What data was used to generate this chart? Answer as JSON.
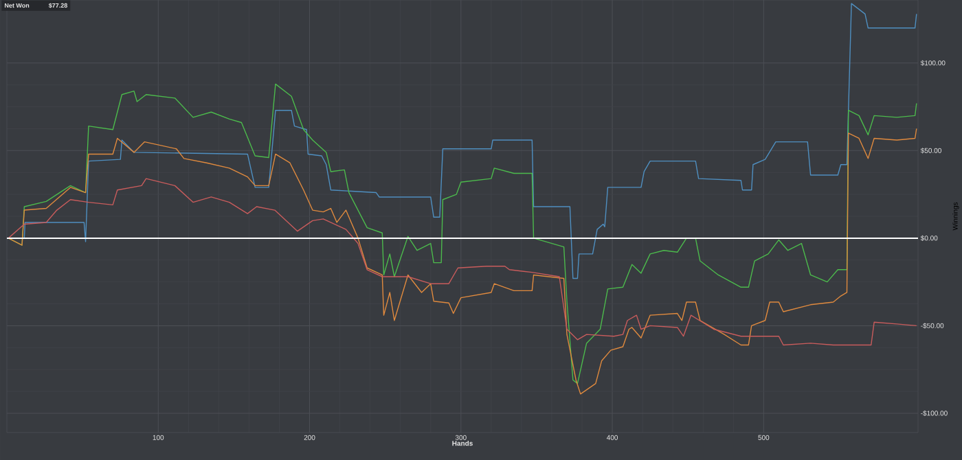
{
  "chart_data": {
    "type": "line",
    "xlabel": "Hands",
    "ylabel": "Winnings",
    "annotations": [
      "Net Won",
      "$77.28"
    ],
    "xlim": [
      0,
      602
    ],
    "ylim": [
      -111,
      136
    ],
    "xticks": [
      100,
      200,
      300,
      400,
      500
    ],
    "yticks": [
      {
        "value": -100,
        "label": "-$100.00"
      },
      {
        "value": -50,
        "label": "-$50.00"
      },
      {
        "value": 0,
        "label": "$0.00"
      },
      {
        "value": 50,
        "label": "$50.00"
      },
      {
        "value": 100,
        "label": "$100.00"
      }
    ],
    "grid": true,
    "ref_lines": [
      {
        "axis": "y",
        "value": 0,
        "color": "#ffffff"
      }
    ],
    "series": [
      {
        "color": "#4f8fc0",
        "x": [
          1,
          11.5,
          12,
          51,
          52,
          54,
          75,
          76,
          84,
          159,
          164,
          173,
          177.5,
          188,
          190,
          198,
          199,
          208,
          211,
          214,
          244,
          246,
          280,
          282,
          286,
          288,
          320,
          321,
          347,
          348,
          372,
          374,
          377,
          378,
          387,
          390,
          394,
          395,
          397,
          419,
          421,
          425,
          455,
          457,
          485,
          486,
          492,
          493,
          501,
          508,
          529,
          531,
          549,
          551,
          555,
          558,
          567,
          569,
          600,
          601
        ],
        "values": [
          0,
          0,
          9,
          9,
          -2,
          44,
          45,
          56,
          49,
          48,
          29,
          29,
          73,
          73,
          64,
          62,
          48,
          47,
          42,
          27.5,
          26,
          23.5,
          23.5,
          12,
          12,
          51,
          51,
          56,
          56,
          18,
          18,
          -23,
          -23,
          -9,
          -9,
          5,
          8,
          6.5,
          29,
          29,
          38,
          44,
          44,
          34,
          33,
          27.5,
          27.5,
          42,
          45,
          55,
          55,
          36,
          36,
          42,
          42,
          134,
          128,
          120,
          120,
          128
        ]
      },
      {
        "color": "#4cba4c",
        "x": [
          1,
          10,
          11.5,
          26,
          42,
          52,
          54,
          70,
          76,
          84,
          86,
          92,
          111,
          123,
          135,
          147,
          155,
          164,
          173,
          177.5,
          188,
          196,
          202,
          211,
          214,
          223,
          226,
          238,
          248,
          249,
          253,
          256,
          265,
          271,
          280,
          282,
          287,
          288,
          297,
          300,
          320,
          322,
          335,
          347,
          348,
          368,
          370,
          374,
          377,
          383,
          392,
          397,
          407,
          413,
          419,
          425,
          434,
          443,
          449,
          455,
          458,
          470,
          485,
          490,
          494,
          503,
          510,
          516,
          525,
          531,
          542,
          549,
          555,
          556,
          563,
          569,
          573,
          588,
          600,
          601
        ],
        "values": [
          0,
          -4,
          18,
          21,
          30,
          26,
          64,
          62,
          82,
          84,
          78,
          82,
          80,
          69,
          72,
          68,
          66,
          47,
          46,
          88,
          81,
          62,
          56,
          49,
          38,
          39,
          26,
          6,
          3,
          -21,
          -9,
          -22,
          1,
          -7,
          -3,
          -14,
          -14,
          22,
          25,
          32,
          34,
          40,
          37,
          37,
          0,
          -5,
          -36,
          -81,
          -83,
          -60,
          -52,
          -29,
          -28,
          -15,
          -20,
          -9,
          -7,
          -8,
          0,
          0,
          -13,
          -21,
          -28,
          -28,
          -13,
          -9,
          -1,
          -7,
          -3,
          -21,
          -25,
          -18,
          -18,
          73,
          70,
          59,
          70,
          69,
          70,
          77
        ]
      },
      {
        "color": "#e08a3e",
        "x": [
          1,
          10,
          11.5,
          26,
          42,
          52,
          54,
          70,
          73,
          84,
          91,
          112,
          117,
          132,
          147,
          159,
          164,
          173,
          177.5,
          187,
          196,
          202,
          209,
          214,
          218,
          224,
          232,
          238,
          248,
          249,
          253,
          256,
          265,
          274,
          280,
          282,
          292,
          295,
          300,
          320,
          322,
          335,
          347,
          348,
          368,
          370,
          376,
          379,
          389,
          393,
          399,
          407,
          411,
          413,
          419,
          425,
          443,
          446,
          449,
          455,
          458,
          474,
          485,
          490,
          492,
          501,
          504,
          510,
          513,
          531,
          546,
          551,
          555,
          556,
          563,
          569,
          573,
          588,
          600,
          601
        ],
        "values": [
          0,
          -4,
          16,
          17,
          29,
          26,
          48,
          48,
          57,
          49,
          55,
          51,
          45.5,
          43,
          40,
          35,
          30,
          30,
          48,
          43,
          27.5,
          16,
          15,
          17,
          9,
          16,
          0,
          -17,
          -21,
          -44,
          -31,
          -47,
          -21,
          -31,
          -26,
          -36,
          -37,
          -43,
          -34,
          -31,
          -26,
          -30,
          -30,
          -21,
          -23,
          -55,
          -81,
          -89,
          -83,
          -70,
          -64,
          -62,
          -52,
          -51,
          -57,
          -44,
          -43,
          -47,
          -36.5,
          -36.5,
          -47,
          -55,
          -61,
          -61,
          -50,
          -47,
          -36.5,
          -36.5,
          -42,
          -38,
          -36.5,
          -33,
          -31,
          60,
          57,
          45.5,
          57,
          56,
          57,
          62.5
        ]
      },
      {
        "color": "#c95c5c",
        "x": [
          1,
          11.5,
          26,
          33,
          42,
          54,
          70,
          73,
          89,
          92,
          111,
          123,
          135,
          147,
          159,
          165,
          177,
          192,
          202,
          209,
          224,
          232,
          238,
          248,
          265,
          280,
          292,
          298,
          317,
          329,
          332,
          347,
          365,
          370,
          377,
          383,
          401,
          407,
          410,
          416,
          419,
          425,
          443,
          447,
          452,
          467,
          485,
          510,
          513,
          531,
          546,
          571,
          573,
          588,
          601
        ],
        "values": [
          0,
          8,
          9,
          16,
          22,
          20.5,
          19,
          27.5,
          30,
          34,
          30,
          20.5,
          23.5,
          20.5,
          14,
          18,
          16,
          4,
          10,
          11,
          5,
          -3,
          -18,
          -22,
          -22,
          -26,
          -26,
          -17,
          -16,
          -16,
          -18,
          -19.5,
          -22,
          -52,
          -58,
          -55,
          -56,
          -55,
          -47,
          -44,
          -52,
          -50,
          -51,
          -56,
          -44,
          -52,
          -56,
          -56,
          -61,
          -60,
          -61,
          -61,
          -48,
          -49,
          -50
        ]
      }
    ]
  }
}
